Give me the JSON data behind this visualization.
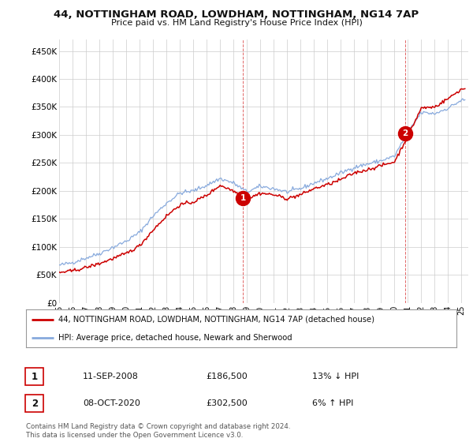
{
  "title_line1": "44, NOTTINGHAM ROAD, LOWDHAM, NOTTINGHAM, NG14 7AP",
  "title_line2": "Price paid vs. HM Land Registry's House Price Index (HPI)",
  "ylabel_ticks": [
    "£0",
    "£50K",
    "£100K",
    "£150K",
    "£200K",
    "£250K",
    "£300K",
    "£350K",
    "£400K",
    "£450K"
  ],
  "ytick_values": [
    0,
    50000,
    100000,
    150000,
    200000,
    250000,
    300000,
    350000,
    400000,
    450000
  ],
  "ylim": [
    0,
    470000
  ],
  "xlim_start": 1995.0,
  "xlim_end": 2025.5,
  "hpi_color": "#88aadd",
  "price_color": "#cc0000",
  "marker1_label": "1",
  "marker1_date": "11-SEP-2008",
  "marker1_price": "£186,500",
  "marker1_pct": "13% ↓ HPI",
  "marker1_x": 2008.7,
  "marker1_y": 186500,
  "marker2_label": "2",
  "marker2_date": "08-OCT-2020",
  "marker2_price": "£302,500",
  "marker2_pct": "6% ↑ HPI",
  "marker2_x": 2020.8,
  "marker2_y": 302500,
  "legend_line1": "44, NOTTINGHAM ROAD, LOWDHAM, NOTTINGHAM, NG14 7AP (detached house)",
  "legend_line2": "HPI: Average price, detached house, Newark and Sherwood",
  "footnote": "Contains HM Land Registry data © Crown copyright and database right 2024.\nThis data is licensed under the Open Government Licence v3.0.",
  "background_color": "#ffffff",
  "grid_color": "#cccccc"
}
